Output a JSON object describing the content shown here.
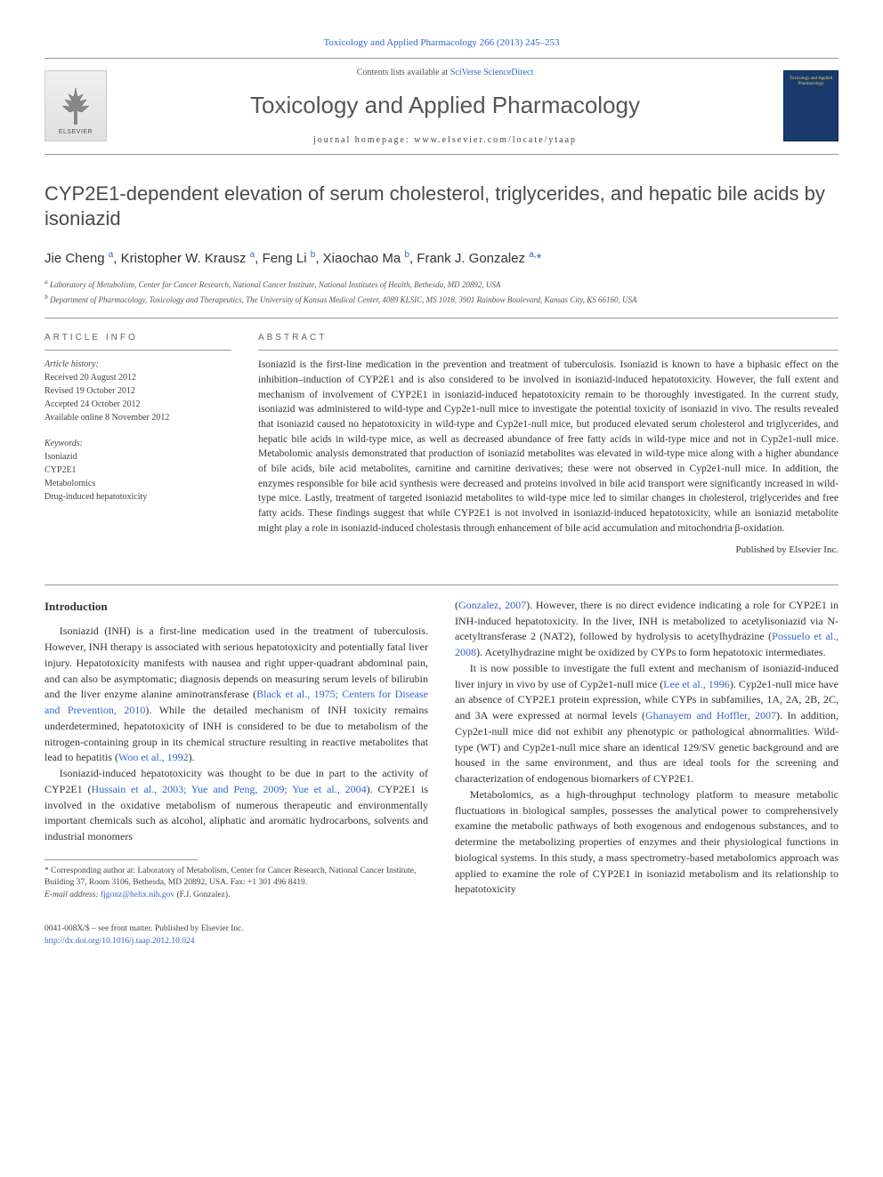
{
  "header": {
    "citation": "Toxicology and Applied Pharmacology 266 (2013) 245–253",
    "contents_prefix": "Contents lists available at ",
    "contents_link": "SciVerse ScienceDirect",
    "journal_title": "Toxicology and Applied Pharmacology",
    "homepage_label": "journal homepage: www.elsevier.com/locate/ytaap",
    "elsevier_label": "ELSEVIER",
    "cover_text": "Toxicology and Applied Pharmacology"
  },
  "article": {
    "title": "CYP2E1-dependent elevation of serum cholesterol, triglycerides, and hepatic bile acids by isoniazid",
    "authors_html": "Jie Cheng <sup>a</sup>, Kristopher W. Krausz <sup>a</sup>, Feng Li <sup>b</sup>, Xiaochao Ma <sup>b</sup>, Frank J. Gonzalez <sup>a,</sup><span class='corr'>*</span>",
    "affiliations": [
      "a Laboratory of Metabolism, Center for Cancer Research, National Cancer Institute, National Institutes of Health, Bethesda, MD 20892, USA",
      "b Department of Pharmacology, Toxicology and Therapeutics, The University of Kansas Medical Center, 4089 KLSIC, MS 1018, 3901 Rainbow Boulevard, Kansas City, KS 66160, USA"
    ]
  },
  "labels": {
    "article_info": "ARTICLE INFO",
    "abstract": "ABSTRACT",
    "history": "Article history:",
    "keywords": "Keywords:"
  },
  "history": {
    "received": "Received 20 August 2012",
    "revised": "Revised 19 October 2012",
    "accepted": "Accepted 24 October 2012",
    "online": "Available online 8 November 2012"
  },
  "keywords": [
    "Isoniazid",
    "CYP2E1",
    "Metabolomics",
    "Drug-induced hepatotoxicity"
  ],
  "abstract": "Isoniazid is the first-line medication in the prevention and treatment of tuberculosis. Isoniazid is known to have a biphasic effect on the inhibition–induction of CYP2E1 and is also considered to be involved in isoniazid-induced hepatotoxicity. However, the full extent and mechanism of involvement of CYP2E1 in isoniazid-induced hepatotoxicity remain to be thoroughly investigated. In the current study, isoniazid was administered to wild-type and Cyp2e1-null mice to investigate the potential toxicity of isoniazid in vivo. The results revealed that isoniazid caused no hepatotoxicity in wild-type and Cyp2e1-null mice, but produced elevated serum cholesterol and triglycerides, and hepatic bile acids in wild-type mice, as well as decreased abundance of free fatty acids in wild-type mice and not in Cyp2e1-null mice. Metabolomic analysis demonstrated that production of isoniazid metabolites was elevated in wild-type mice along with a higher abundance of bile acids, bile acid metabolites, carnitine and carnitine derivatives; these were not observed in Cyp2e1-null mice. In addition, the enzymes responsible for bile acid synthesis were decreased and proteins involved in bile acid transport were significantly increased in wild-type mice. Lastly, treatment of targeted isoniazid metabolites to wild-type mice led to similar changes in cholesterol, triglycerides and free fatty acids. These findings suggest that while CYP2E1 is not involved in isoniazid-induced hepatotoxicity, while an isoniazid metabolite might play a role in isoniazid-induced cholestasis through enhancement of bile acid accumulation and mitochondria β-oxidation.",
  "publisher_note": "Published by Elsevier Inc.",
  "body": {
    "intro_heading": "Introduction",
    "p1_a": "Isoniazid (INH) is a first-line medication used in the treatment of tuberculosis. However, INH therapy is associated with serious hepatotoxicity and potentially fatal liver injury. Hepatotoxicity manifests with nausea and right upper-quadrant abdominal pain, and can also be asymptomatic; diagnosis depends on measuring serum levels of bilirubin and the liver enzyme alanine aminotransferase (",
    "p1_ref1": "Black et al., 1975; Centers for Disease and Prevention, 2010",
    "p1_b": "). While the detailed mechanism of INH toxicity remains underdetermined, hepatotoxicity of INH is considered to be due to metabolism of the nitrogen-containing group in its chemical structure resulting in reactive metabolites that lead to hepatitis (",
    "p1_ref2": "Woo et al., 1992",
    "p1_c": ").",
    "p2_a": "Isoniazid-induced hepatotoxicity was thought to be due in part to the activity of CYP2E1 (",
    "p2_ref1": "Hussain et al., 2003; Yue and Peng, 2009; Yue et al., 2004",
    "p2_b": "). CYP2E1 is involved in the oxidative metabolism of numerous therapeutic and environmentally important chemicals such as alcohol, aliphatic and aromatic hydrocarbons, solvents and industrial monomers",
    "p3_a": "(",
    "p3_ref1": "Gonzalez, 2007",
    "p3_b": "). However, there is no direct evidence indicating a role for CYP2E1 in INH-induced hepatotoxicity. In the liver, INH is metabolized to acetylisoniazid via N-acetyltransferase 2 (NAT2), followed by hydrolysis to acetylhydrazine (",
    "p3_ref2": "Possuelo et al., 2008",
    "p3_c": "). Acetylhydrazine might be oxidized by CYPs to form hepatotoxic intermediates.",
    "p4_a": "It is now possible to investigate the full extent and mechanism of isoniazid-induced liver injury in vivo by use of Cyp2e1-null mice (",
    "p4_ref1": "Lee et al., 1996",
    "p4_b": "). Cyp2e1-null mice have an absence of CYP2E1 protein expression, while CYPs in subfamilies, 1A, 2A, 2B, 2C, and 3A were expressed at normal levels (",
    "p4_ref2": "Ghanayem and Hoffler, 2007",
    "p4_c": "). In addition, Cyp2e1-null mice did not exhibit any phenotypic or pathological abnormalities. Wild-type (WT) and Cyp2e1-null mice share an identical 129/SV genetic background and are housed in the same environment, and thus are ideal tools for the screening and characterization of endogenous biomarkers of CYP2E1.",
    "p5": "Metabolomics, as a high-throughput technology platform to measure metabolic fluctuations in biological samples, possesses the analytical power to comprehensively examine the metabolic pathways of both exogenous and endogenous substances, and to determine the metabolizing properties of enzymes and their physiological functions in biological systems. In this study, a mass spectrometry-based metabolomics approach was applied to examine the role of CYP2E1 in isoniazid metabolism and its relationship to hepatotoxicity"
  },
  "footnote": {
    "corr": "* Corresponding author at: Laboratory of Metabolism, Center for Cancer Research, National Cancer Institute, Building 37, Room 3106, Bethesda, MD 20892, USA. Fax: +1 301 496 8419.",
    "email_label": "E-mail address: ",
    "email": "fjgonz@helix.nih.gov",
    "email_name": " (F.J. Gonzalez)."
  },
  "bottom": {
    "copyright": "0041-008X/$ – see front matter. Published by Elsevier Inc.",
    "doi": "http://dx.doi.org/10.1016/j.taap.2012.10.024"
  },
  "colors": {
    "link": "#3366cc",
    "text": "#333333",
    "heading": "#4a4a4a",
    "rule": "#999999"
  }
}
